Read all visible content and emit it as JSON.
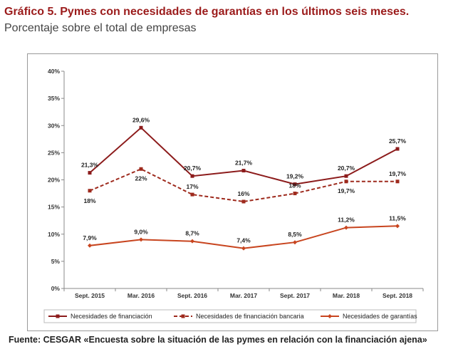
{
  "heading": {
    "title_bold": "Gráfico 5. Pymes con necesidades de garantías en los últimos seis meses.",
    "title_rest": "Porcentaje sobre el total de empresas"
  },
  "source": "Fuente: CESGAR «Encuesta sobre la situación de las pymes en relación con la financiación ajena»",
  "colors": {
    "dark": "#8c1b1b",
    "light": "#c8451f",
    "axis": "#888888"
  },
  "chart_data": {
    "type": "line",
    "categories": [
      "Sept. 2015",
      "Mar. 2016",
      "Sept. 2016",
      "Mar. 2017",
      "Sept. 2017",
      "Mar. 2018",
      "Sept. 2018"
    ],
    "y_ticks": [
      "0%",
      "5%",
      "10%",
      "15%",
      "20%",
      "25%",
      "30%",
      "35%",
      "40%"
    ],
    "ylim": [
      0,
      40
    ],
    "grid": false,
    "legend_position": "bottom",
    "series": [
      {
        "name": "Necesidades de financiación",
        "values": [
          21.3,
          29.6,
          20.7,
          21.7,
          19.2,
          20.7,
          25.7
        ],
        "labels": [
          "21,3%",
          "29,6%",
          "20,7%",
          "21,7%",
          "19,2%",
          "20,7%",
          "25,7%"
        ],
        "style": "solid",
        "marker": "square",
        "color": "#8c1b1b"
      },
      {
        "name": "Necesidades de financiación bancaria",
        "values": [
          18,
          22,
          17.3,
          16,
          17.5,
          19.7,
          19.7
        ],
        "labels": [
          "18%",
          "22%",
          "17%",
          "16%",
          "18%",
          "19,7%",
          "19,7%"
        ],
        "style": "dashed",
        "marker": "square",
        "color": "#9e2a1d"
      },
      {
        "name": "Necesidades de garantías",
        "values": [
          7.9,
          9.0,
          8.7,
          7.4,
          8.5,
          11.2,
          11.5
        ],
        "labels": [
          "7,9%",
          "9,0%",
          "8,7%",
          "7,4%",
          "8,5%",
          "11,2%",
          "11,5%"
        ],
        "style": "solid",
        "marker": "diamond",
        "color": "#c8451f"
      }
    ]
  }
}
